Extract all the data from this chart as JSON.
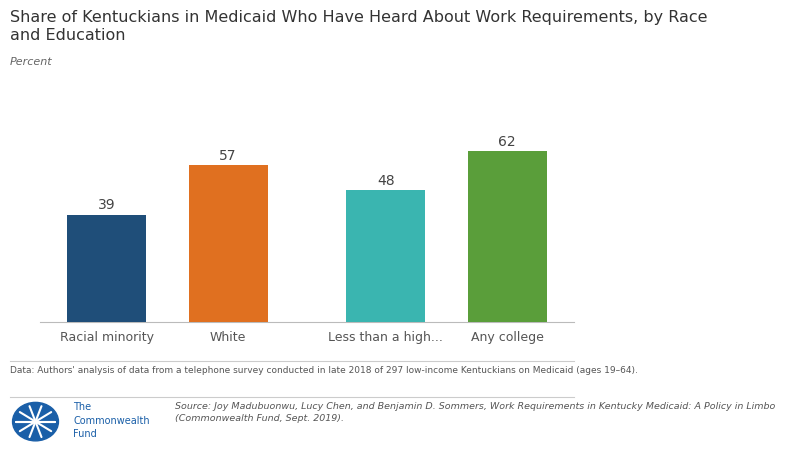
{
  "title_line1": "Share of Kentuckians in Medicaid Who Have Heard About Work Requirements, by Race",
  "title_line2": "and Education",
  "ylabel": "Percent",
  "categories": [
    "Racial minority",
    "White",
    "Less than a high...",
    "Any college"
  ],
  "values": [
    39,
    57,
    48,
    62
  ],
  "bar_colors": [
    "#1f4e79",
    "#e07020",
    "#3ab5b0",
    "#5a9e3a"
  ],
  "label_fontsize": 9,
  "value_fontsize": 10,
  "title_fontsize": 11.5,
  "ylabel_fontsize": 8,
  "ylim": [
    0,
    75
  ],
  "footnote": "Data: Authors' analysis of data from a telephone survey conducted in late 2018 of 297 low-income Kentuckians on Medicaid (ages 19–64).",
  "source_line1": "Source: Joy Madubuonwu, Lucy Chen, and Benjamin D. Sommers, Work Requirements in Kentucky Medicaid: A Policy in Limbo",
  "source_line2": "(Commonwealth Fund, Sept. 2019).",
  "background_color": "#ffffff",
  "x_positions": [
    0,
    1,
    2.3,
    3.3
  ],
  "bar_width": 0.65,
  "xlim": [
    -0.55,
    3.85
  ]
}
